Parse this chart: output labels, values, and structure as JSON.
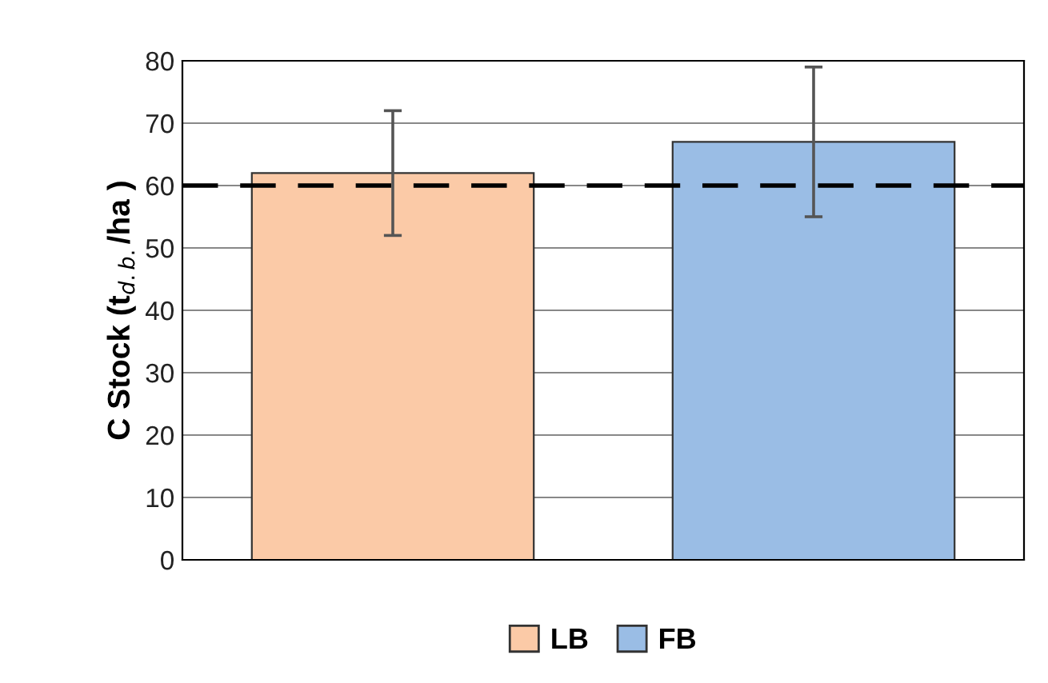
{
  "chart_data": {
    "type": "bar",
    "ylabel": "C Stock (t$_{d.b.}$/ha )",
    "categories": [
      null,
      null
    ],
    "series": [
      {
        "name": "LB",
        "color": "#fbcaa7",
        "values": [
          62,
          null
        ],
        "errors": [
          [
            52,
            72
          ],
          null
        ]
      },
      {
        "name": "FB",
        "color": "#9abde5",
        "values": [
          null,
          67
        ],
        "errors": [
          null,
          [
            55,
            79
          ]
        ]
      }
    ],
    "ylim": [
      0,
      80
    ],
    "yticks": [
      0,
      10,
      20,
      30,
      40,
      50,
      60,
      70,
      80
    ],
    "grid": "y",
    "legend": "bottom",
    "ref_lines": [
      {
        "axis": "y",
        "value": 60,
        "color": "#000000",
        "line_style": "dashed"
      }
    ]
  }
}
